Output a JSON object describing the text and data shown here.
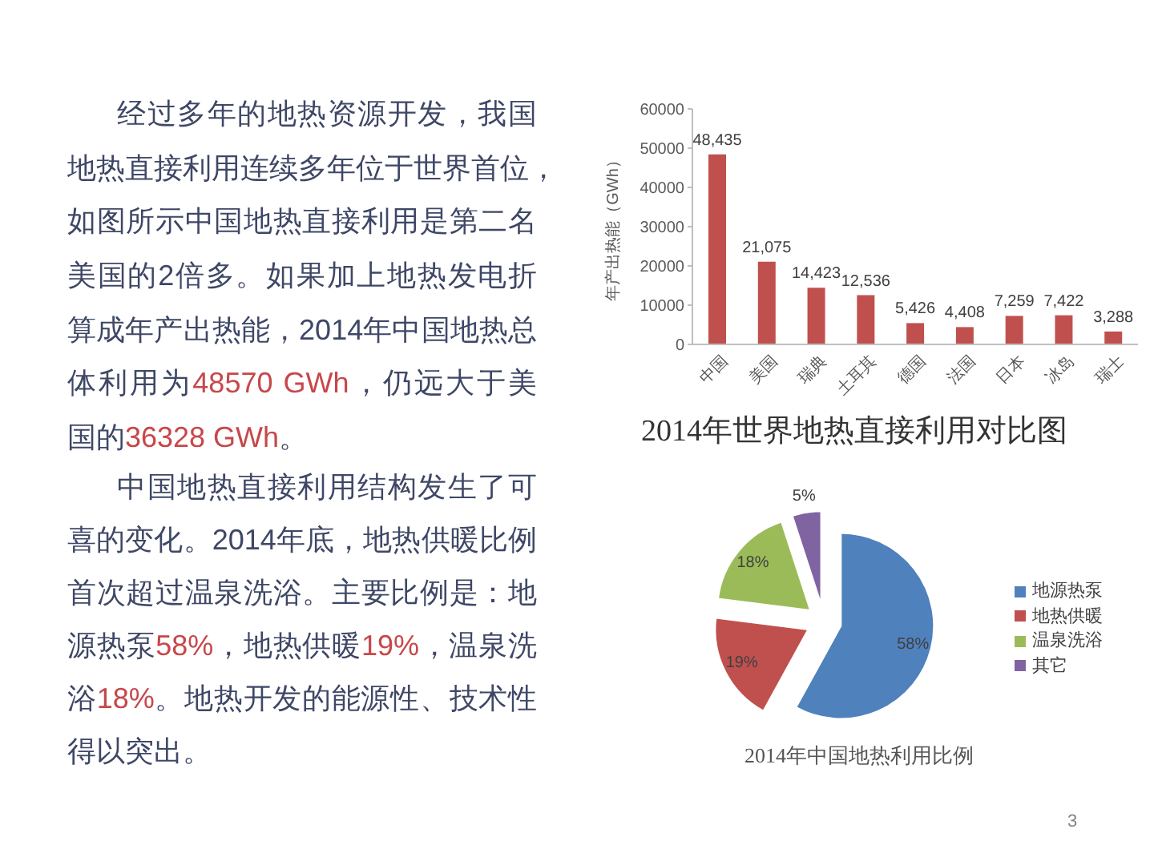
{
  "chart_data": [
    {
      "type": "other",
      "annotations": [
        "经过多年的地热资源开发，我国地热直接利用连续多年位于世界首位，如图所示中国地热直接利用是第二名美国的2倍多。如果加上地热发电折算成年产出热能，2014年中国地热总",
        "体利用为",
        "48570 GWh",
        "，仍远大于美",
        "国的",
        "36328 GWh",
        "。"
      ],
      "colors": [
        "#3e4766",
        "#3e4766",
        "#c8474a",
        "#3e4766",
        "#3e4766",
        "#c8474a",
        "#3e4766"
      ]
    },
    {
      "type": "other",
      "annotations": [
        "中国地热直接利用结构发生了可喜的变化。2014年底，地热供暖比例首次超过温泉洗浴。主要比例是：地",
        "源热泵",
        "58%",
        "，地热供暖",
        "19%",
        "，温泉洗",
        "浴",
        "18%",
        "。地热开发的能源性、技术性",
        "得以突出。"
      ],
      "colors": [
        "#3e4766",
        "#3e4766",
        "#c8474a",
        "#3e4766",
        "#c8474a",
        "#3e4766",
        "#3e4766",
        "#c8474a",
        "#3e4766",
        "#3e4766"
      ]
    },
    {
      "type": "bar",
      "title": "2014年世界地热直接利用对比图",
      "ylabel": "年产出热能（GWh）",
      "categories": [
        "中国",
        "美国",
        "瑞典",
        "土耳其",
        "德国",
        "法国",
        "日本",
        "冰岛",
        "瑞士"
      ],
      "values": [
        48435,
        21075,
        14423,
        12536,
        5426,
        4408,
        7259,
        7422,
        3288
      ],
      "value_labels": [
        "48,435",
        "21,075",
        "14,423",
        "12,536",
        "5,426",
        "4,408",
        "7,259",
        "7,422",
        "3,288"
      ],
      "color": "#c0504d",
      "ylim": [
        0,
        60000
      ],
      "yticks": [
        0,
        10000,
        20000,
        30000,
        40000,
        50000,
        60000
      ]
    },
    {
      "type": "pie",
      "title": "2014年中国地热利用比例",
      "categories": [
        "地源热泵",
        "地热供暖",
        "温泉洗浴",
        "其它"
      ],
      "values": [
        58,
        19,
        18,
        5
      ],
      "value_labels": [
        "58%",
        "19%",
        "18%",
        "5%"
      ],
      "colors": [
        "#4f81bd",
        "#c0504d",
        "#9bbb59",
        "#8064a2"
      ],
      "legend": "right"
    },
    {
      "type": "other",
      "annotations": [
        "3"
      ],
      "color": "#808080"
    }
  ]
}
